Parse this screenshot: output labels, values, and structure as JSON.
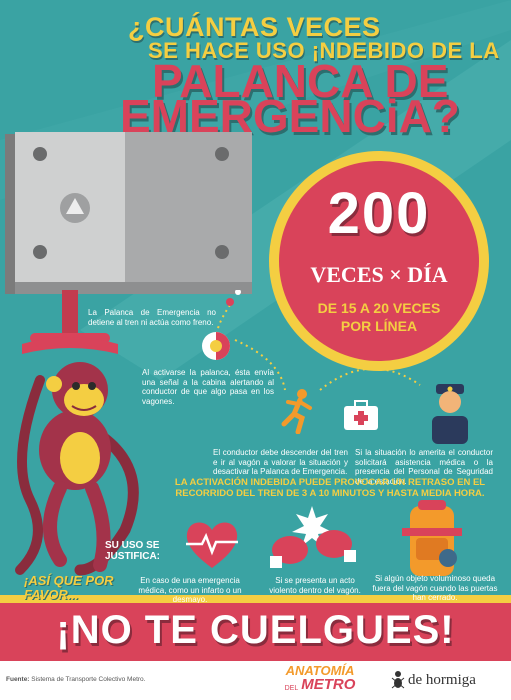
{
  "title": {
    "line1": "¿CUÁNTAS VECES",
    "line2": "SE HACE USO ¡NDEBIDO DE LA",
    "line3": "PALANCA DE",
    "line4": "EMERGENCiA?"
  },
  "stat": {
    "number": "200",
    "unit": "VECES × DÍA",
    "line_a": "DE 15 A 20 VECES",
    "line_b": "POR LÍNEA"
  },
  "steps": {
    "s1": "La Palanca de Emergencia no detiene al tren ni actúa como freno.",
    "s2": "Al activarse la palanca, ésta envía una señal a la cabina alertando al conductor de que algo pasa en los vagones.",
    "s3": "El conductor debe descender del tren e ir al vagón a valorar la situación y desactivar la Palanca de Emergencia.",
    "s4": "Si la situación lo amerita el conductor solicitará asistencia médica o la presencia del Personal de Seguridad de la estación."
  },
  "delay_note": "LA ACTIVACIÓN INDEBIDA PUEDE PROVOCAR UN RETRASO EN EL RECORRIDO DEL TREN DE 3 A 10 MINUTOS Y HASTA MEDIA HORA.",
  "justify": {
    "heading": "SU USO SE JUSTIFICA:",
    "c1": "En caso de una emergencia médica, como un infarto o un desmayo.",
    "c2": "Si se presenta un acto violento dentro del vagón.",
    "c3": "Si algún objeto voluminoso queda fuera del vagón cuando las puertas han cerrado."
  },
  "callout": "¡ASÍ QUE POR FAVOR...",
  "banner": "¡NO TE CUELGUES!",
  "footer": {
    "source_label": "Fuente:",
    "source_text": "Sistema de Transporte Colectivo Metro.",
    "logo1_top": "ANATOMÍA",
    "logo1_del": "DEL",
    "logo1_bottom": "METRO",
    "logo2": "de hormiga"
  },
  "colors": {
    "background": "#3aa3a3",
    "yellow": "#f4ce42",
    "red": "#d9435a",
    "dark_teal": "#2c6f6f"
  }
}
